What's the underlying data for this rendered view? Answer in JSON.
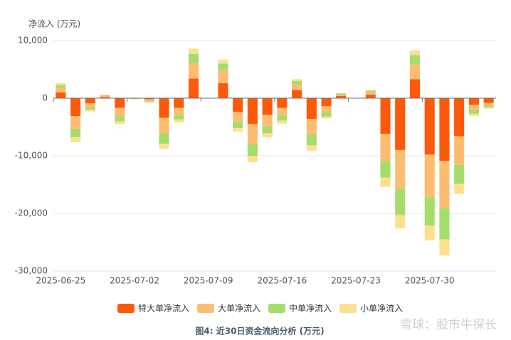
{
  "chart_data": {
    "type": "bar",
    "stacked": true,
    "title": "图4: 近30日资金流向分析 (万元)",
    "y_axis_label": "净流入 (万元)",
    "watermark": "雪球：股市牛探长",
    "categories": [
      "2025-06-25",
      null,
      null,
      null,
      null,
      "2025-07-02",
      null,
      null,
      null,
      null,
      "2025-07-09",
      null,
      null,
      null,
      null,
      "2025-07-16",
      null,
      null,
      null,
      null,
      "2025-07-23",
      null,
      null,
      null,
      null,
      "2025-07-30",
      null,
      null,
      null,
      null
    ],
    "series": [
      {
        "name": "特大单净流入",
        "color": "#fb5a0a",
        "values": [
          1000,
          -3100,
          -900,
          200,
          -1700,
          -100,
          -200,
          -3400,
          -1700,
          3400,
          0,
          2600,
          -2400,
          -4500,
          -2900,
          -1700,
          1400,
          -3600,
          -1400,
          400,
          0,
          600,
          -6200,
          -9000,
          3300,
          -9800,
          -10900,
          -6600,
          -1200,
          -800
        ]
      },
      {
        "name": "大单净流入",
        "color": "#fbbd72",
        "values": [
          800,
          -2200,
          -700,
          300,
          -1400,
          0,
          -300,
          -2700,
          -1300,
          2600,
          0,
          2200,
          -1800,
          -3500,
          -2000,
          -1300,
          1000,
          -2700,
          -1100,
          200,
          0,
          500,
          -4700,
          -6800,
          2600,
          -7400,
          -8200,
          -5000,
          -800,
          -500
        ]
      },
      {
        "name": "中单净流入",
        "color": "#a6dc6b",
        "values": [
          500,
          -1500,
          -400,
          0,
          -900,
          0,
          -100,
          -1800,
          -700,
          1700,
          0,
          1200,
          -1000,
          -2000,
          -1200,
          -900,
          600,
          -1900,
          -700,
          200,
          0,
          200,
          -2900,
          -4500,
          1600,
          -4900,
          -5400,
          -3300,
          -700,
          -300
        ]
      },
      {
        "name": "小单净流入",
        "color": "#fde08f",
        "values": [
          300,
          -800,
          -300,
          100,
          -500,
          -100,
          -200,
          -900,
          -500,
          900,
          0,
          700,
          -600,
          -1100,
          -700,
          -500,
          300,
          -900,
          -300,
          100,
          0,
          100,
          -1600,
          -2300,
          800,
          -2600,
          -2800,
          -1700,
          -400,
          -200
        ]
      }
    ],
    "ylim": [
      -30000,
      10000
    ],
    "yticks": [
      {
        "value": -30000,
        "label": "-30,000"
      },
      {
        "value": -20000,
        "label": "-20,000"
      },
      {
        "value": -10000,
        "label": "-10,000"
      },
      0,
      {
        "value": 10000,
        "label": "10,000"
      }
    ],
    "grid": true
  }
}
